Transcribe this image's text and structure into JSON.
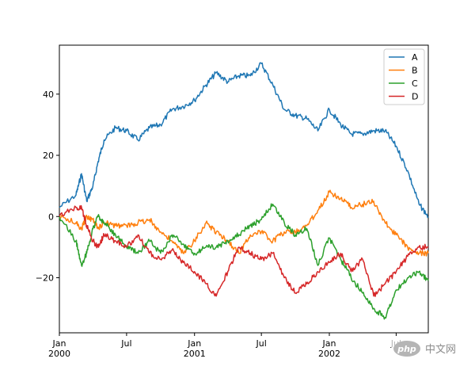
{
  "chart_data": {
    "type": "line",
    "title": "",
    "xlabel": "",
    "ylabel": "",
    "x_range": [
      "2000-01-01",
      "2002-09-26"
    ],
    "ylim": [
      -38,
      56
    ],
    "grid": false,
    "legend_position": "top-right",
    "x_ticks": [
      {
        "date": "2000-01-01",
        "label": "Jan",
        "year": "2000"
      },
      {
        "date": "2000-07-01",
        "label": "Jul",
        "year": ""
      },
      {
        "date": "2001-01-01",
        "label": "Jan",
        "year": "2001"
      },
      {
        "date": "2001-07-01",
        "label": "Jul",
        "year": ""
      },
      {
        "date": "2002-01-01",
        "label": "Jan",
        "year": "2002"
      },
      {
        "date": "2002-07-01",
        "label": "Jul",
        "year": ""
      }
    ],
    "y_ticks": [
      {
        "value": 40,
        "label": "40"
      },
      {
        "value": 20,
        "label": "20"
      },
      {
        "value": 0,
        "label": "0"
      },
      {
        "value": -20,
        "label": "−20"
      }
    ],
    "x": [
      "2000-01-01",
      "2000-02-15",
      "2000-03-01",
      "2000-03-15",
      "2000-04-01",
      "2000-04-15",
      "2000-05-01",
      "2000-06-01",
      "2000-07-01",
      "2000-08-01",
      "2000-09-01",
      "2000-10-01",
      "2000-11-01",
      "2000-12-01",
      "2001-01-01",
      "2001-02-01",
      "2001-03-01",
      "2001-04-01",
      "2001-05-01",
      "2001-06-01",
      "2001-07-01",
      "2001-08-01",
      "2001-09-01",
      "2001-10-01",
      "2001-11-01",
      "2001-12-01",
      "2002-01-01",
      "2002-02-01",
      "2002-03-01",
      "2002-04-01",
      "2002-05-01",
      "2002-06-01",
      "2002-07-01",
      "2002-08-01",
      "2002-09-01",
      "2002-09-26"
    ],
    "series": [
      {
        "name": "A",
        "color": "#1f77b4",
        "values": [
          3,
          7,
          14,
          5,
          10,
          18,
          25,
          29,
          28,
          25,
          29,
          30,
          35,
          36,
          38,
          43,
          47,
          44,
          46,
          46,
          50,
          43,
          35,
          33,
          32,
          28,
          35,
          30,
          27,
          27,
          28,
          28,
          23,
          15,
          4,
          0
        ]
      },
      {
        "name": "B",
        "color": "#ff7f0e",
        "values": [
          0,
          -2,
          -4,
          0,
          -1,
          -4,
          -2,
          -3,
          -3,
          -2,
          -1,
          -5,
          -8,
          -12,
          -8,
          -2,
          -5,
          -8,
          -12,
          -6,
          -5,
          -8,
          -5,
          -5,
          -3,
          2,
          8,
          6,
          3,
          4,
          5,
          -2,
          -6,
          -10,
          -12,
          -12
        ]
      },
      {
        "name": "C",
        "color": "#2ca02c",
        "values": [
          0,
          -8,
          -16,
          -12,
          -4,
          0,
          -2,
          -6,
          -10,
          -12,
          -8,
          -12,
          -6,
          -9,
          -12,
          -10,
          -10,
          -8,
          -6,
          -3,
          -1,
          4,
          -2,
          -6,
          -4,
          -16,
          -7,
          -14,
          -20,
          -25,
          -30,
          -33,
          -24,
          -20,
          -18,
          -21
        ]
      },
      {
        "name": "D",
        "color": "#d62728",
        "values": [
          0,
          3,
          3,
          -3,
          -8,
          -10,
          -6,
          -8,
          -10,
          -6,
          -12,
          -14,
          -11,
          -15,
          -18,
          -22,
          -26,
          -18,
          -10,
          -12,
          -14,
          -12,
          -20,
          -25,
          -22,
          -18,
          -15,
          -12,
          -18,
          -14,
          -26,
          -22,
          -18,
          -13,
          -10,
          -10
        ]
      }
    ]
  },
  "watermark": {
    "text": "中文网",
    "logo": "php"
  }
}
